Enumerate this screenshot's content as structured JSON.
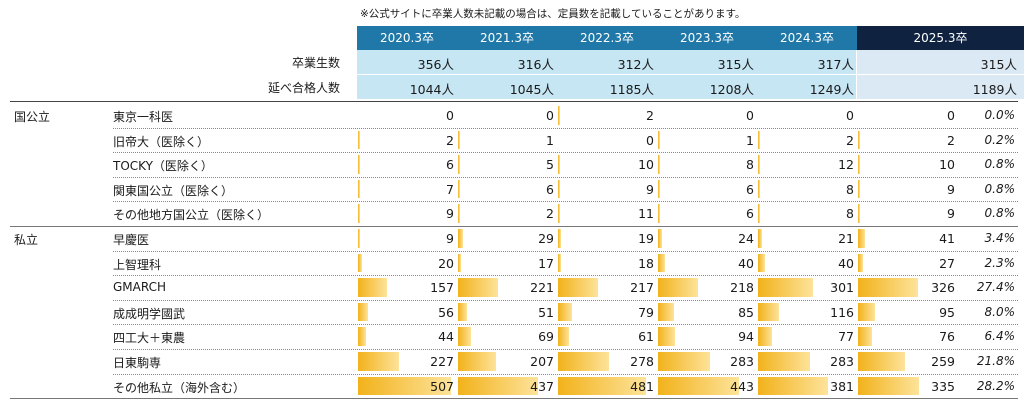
{
  "note": "※公式サイトに卒業人数未記載の場合は、定員数を記載していることがあります。",
  "years": [
    "2020.3卒",
    "2021.3卒",
    "2022.3卒",
    "2023.3卒",
    "2024.3卒",
    "2025.3卒"
  ],
  "graduates": {
    "label": "卒業生数",
    "values": [
      "356人",
      "316人",
      "312人",
      "315人",
      "317人",
      "315人"
    ]
  },
  "passers": {
    "label": "延べ合格人数",
    "values": [
      "1044人",
      "1045人",
      "1185人",
      "1208人",
      "1249人",
      "1189人"
    ]
  },
  "bar_color": "#f2b21b",
  "header_colors": {
    "past": "#1f78a8",
    "current": "#0f2340"
  },
  "groups": [
    "国公立",
    "私立"
  ],
  "rows": [
    {
      "group": "国公立",
      "label": "東京一科医",
      "values": [
        0,
        0,
        2,
        0,
        0,
        0
      ],
      "pct": "0.0%"
    },
    {
      "group": "",
      "label": "旧帝大（医除く）",
      "values": [
        2,
        1,
        0,
        1,
        2,
        2
      ],
      "pct": "0.2%"
    },
    {
      "group": "",
      "label": "TOCKY（医除く）",
      "values": [
        6,
        5,
        10,
        8,
        12,
        10
      ],
      "pct": "0.8%"
    },
    {
      "group": "",
      "label": "関東国公立（医除く）",
      "values": [
        7,
        6,
        9,
        6,
        8,
        9
      ],
      "pct": "0.8%"
    },
    {
      "group": "",
      "label": "その他地方国公立（医除く）",
      "values": [
        9,
        2,
        11,
        6,
        8,
        9
      ],
      "pct": "0.8%"
    },
    {
      "group": "私立",
      "label": "早慶医",
      "values": [
        9,
        29,
        19,
        24,
        21,
        41
      ],
      "pct": "3.4%"
    },
    {
      "group": "",
      "label": "上智理科",
      "values": [
        20,
        17,
        18,
        40,
        40,
        27
      ],
      "pct": "2.3%"
    },
    {
      "group": "",
      "label": "GMARCH",
      "values": [
        157,
        221,
        217,
        218,
        301,
        326
      ],
      "pct": "27.4%"
    },
    {
      "group": "",
      "label": "成成明学國武",
      "values": [
        56,
        51,
        79,
        85,
        116,
        95
      ],
      "pct": "8.0%"
    },
    {
      "group": "",
      "label": "四工大＋東農",
      "values": [
        44,
        69,
        61,
        94,
        77,
        76
      ],
      "pct": "6.4%"
    },
    {
      "group": "",
      "label": "日東駒専",
      "values": [
        227,
        207,
        278,
        283,
        283,
        259
      ],
      "pct": "21.8%"
    },
    {
      "group": "",
      "label": "その他私立（海外含む）",
      "values": [
        507,
        437,
        481,
        443,
        381,
        335
      ],
      "pct": "28.2%"
    }
  ]
}
